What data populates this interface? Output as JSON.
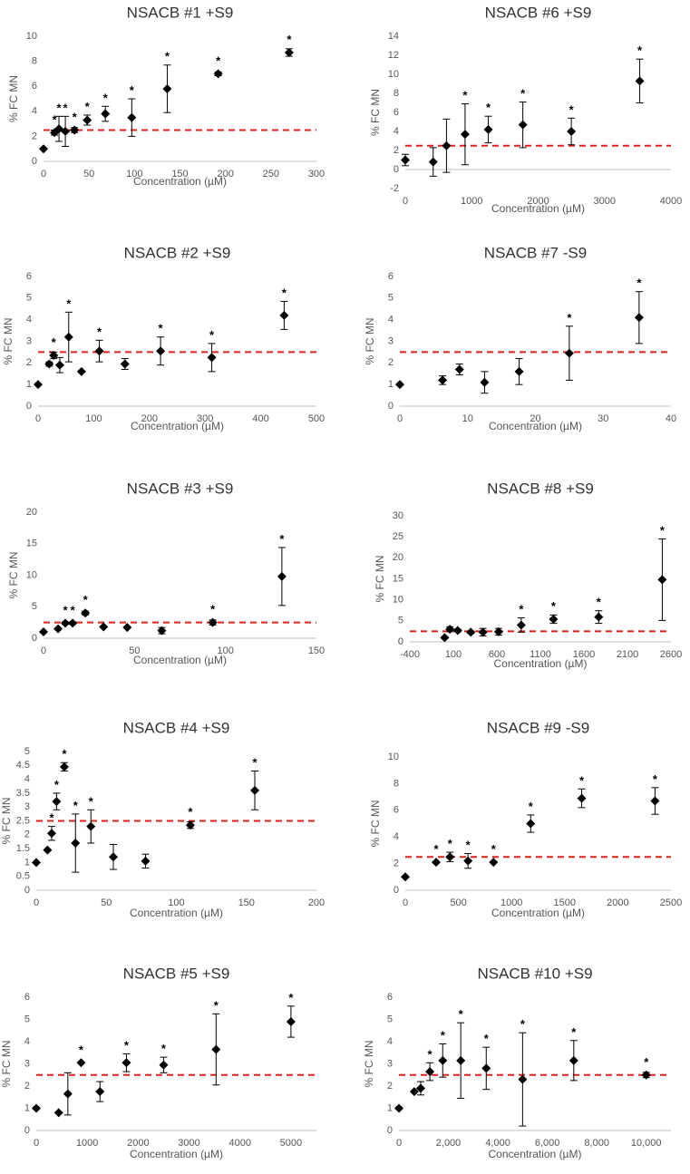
{
  "chart_data": [
    {
      "type": "scatter",
      "title": "NSACB #1 +S9",
      "xlabel": "Concentration (µM)",
      "ylabel": "% FC MN",
      "xlim": [
        0,
        300
      ],
      "ylim": [
        0,
        10
      ],
      "xticks": [
        0,
        50,
        100,
        150,
        200,
        250,
        300
      ],
      "yticks": [
        0,
        2,
        4,
        6,
        8,
        10
      ],
      "xtick_labels": [
        "0",
        "50",
        "100",
        "150",
        "200",
        "250",
        "300"
      ],
      "ytick_labels": [
        "0",
        "2",
        "4",
        "6",
        "8",
        "10"
      ],
      "threshold": 2.5,
      "points": [
        {
          "x": 0,
          "y": 1.0,
          "err": 0,
          "sig": false
        },
        {
          "x": 12,
          "y": 2.3,
          "err": 0.2,
          "sig": true
        },
        {
          "x": 17,
          "y": 2.6,
          "err": 1.0,
          "sig": true
        },
        {
          "x": 24,
          "y": 2.4,
          "err": 1.2,
          "sig": true
        },
        {
          "x": 34,
          "y": 2.5,
          "err": 0.2,
          "sig": true
        },
        {
          "x": 48,
          "y": 3.3,
          "err": 0.4,
          "sig": true
        },
        {
          "x": 68,
          "y": 3.8,
          "err": 0.6,
          "sig": true
        },
        {
          "x": 97,
          "y": 3.5,
          "err": 1.5,
          "sig": true
        },
        {
          "x": 136,
          "y": 5.8,
          "err": 1.9,
          "sig": true
        },
        {
          "x": 192,
          "y": 7.0,
          "err": 0.15,
          "sig": true
        },
        {
          "x": 270,
          "y": 8.7,
          "err": 0.3,
          "sig": true
        }
      ]
    },
    {
      "type": "scatter",
      "title": "NSACB #6 +S9",
      "xlabel": "Concentration (µM)",
      "ylabel": "% FC MN",
      "xlim": [
        0,
        4000
      ],
      "ylim": [
        -2,
        14
      ],
      "xticks": [
        0,
        1000,
        2000,
        3000,
        4000
      ],
      "yticks": [
        -2,
        0,
        2,
        4,
        6,
        8,
        10,
        12,
        14
      ],
      "xtick_labels": [
        "0",
        "1000",
        "2000",
        "3000",
        "4000"
      ],
      "ytick_labels": [
        "-2",
        "0",
        "2",
        "4",
        "6",
        "8",
        "10",
        "12",
        "14"
      ],
      "threshold": 2.5,
      "points": [
        {
          "x": 0,
          "y": 1.0,
          "err": 0.6,
          "sig": false
        },
        {
          "x": 420,
          "y": 0.8,
          "err": 1.5,
          "sig": false
        },
        {
          "x": 620,
          "y": 2.5,
          "err": 2.8,
          "sig": false
        },
        {
          "x": 900,
          "y": 3.7,
          "err": 3.2,
          "sig": true
        },
        {
          "x": 1250,
          "y": 4.2,
          "err": 1.4,
          "sig": true
        },
        {
          "x": 1770,
          "y": 4.7,
          "err": 2.4,
          "sig": true
        },
        {
          "x": 2500,
          "y": 4.0,
          "err": 1.4,
          "sig": true
        },
        {
          "x": 3530,
          "y": 9.3,
          "err": 2.3,
          "sig": true
        }
      ]
    },
    {
      "type": "scatter",
      "title": "NSACB #2 +S9",
      "xlabel": "Concentration (µM)",
      "ylabel": "% FC MN",
      "xlim": [
        0,
        500
      ],
      "ylim": [
        0,
        6
      ],
      "xticks": [
        0,
        100,
        200,
        300,
        400,
        500
      ],
      "yticks": [
        0,
        1,
        2,
        3,
        4,
        5,
        6
      ],
      "xtick_labels": [
        "0",
        "100",
        "200",
        "300",
        "400",
        "500"
      ],
      "ytick_labels": [
        "0",
        "1",
        "2",
        "3",
        "4",
        "5",
        "6"
      ],
      "threshold": 2.5,
      "points": [
        {
          "x": 0,
          "y": 1.0,
          "err": 0,
          "sig": false
        },
        {
          "x": 20,
          "y": 1.95,
          "err": 0.1,
          "sig": false
        },
        {
          "x": 28,
          "y": 2.35,
          "err": 0.15,
          "sig": true
        },
        {
          "x": 39,
          "y": 1.9,
          "err": 0.35,
          "sig": false
        },
        {
          "x": 55,
          "y": 3.2,
          "err": 1.15,
          "sig": true
        },
        {
          "x": 78,
          "y": 1.6,
          "err": 0,
          "sig": false
        },
        {
          "x": 110,
          "y": 2.55,
          "err": 0.5,
          "sig": true
        },
        {
          "x": 156,
          "y": 1.95,
          "err": 0.25,
          "sig": false
        },
        {
          "x": 220,
          "y": 2.55,
          "err": 0.65,
          "sig": true
        },
        {
          "x": 312,
          "y": 2.25,
          "err": 0.65,
          "sig": true
        },
        {
          "x": 442,
          "y": 4.2,
          "err": 0.65,
          "sig": true
        }
      ]
    },
    {
      "type": "scatter",
      "title": "NSACB #7 -S9",
      "xlabel": "Concentration (µM)",
      "ylabel": "% FC MN",
      "xlim": [
        0,
        40
      ],
      "ylim": [
        0,
        6
      ],
      "xticks": [
        0,
        10,
        20,
        30,
        40
      ],
      "yticks": [
        0,
        1,
        2,
        3,
        4,
        5,
        6
      ],
      "xtick_labels": [
        "0",
        "10",
        "20",
        "30",
        "40"
      ],
      "ytick_labels": [
        "0",
        "1",
        "2",
        "3",
        "4",
        "5",
        "6"
      ],
      "threshold": 2.5,
      "points": [
        {
          "x": 0,
          "y": 1.0,
          "err": 0,
          "sig": false
        },
        {
          "x": 6.3,
          "y": 1.2,
          "err": 0.2,
          "sig": false
        },
        {
          "x": 8.8,
          "y": 1.7,
          "err": 0.25,
          "sig": false
        },
        {
          "x": 12.5,
          "y": 1.1,
          "err": 0.5,
          "sig": false
        },
        {
          "x": 17.6,
          "y": 1.6,
          "err": 0.6,
          "sig": false
        },
        {
          "x": 25,
          "y": 2.45,
          "err": 1.25,
          "sig": true
        },
        {
          "x": 35.3,
          "y": 4.1,
          "err": 1.2,
          "sig": true
        }
      ]
    },
    {
      "type": "scatter",
      "title": "NSACB #3 +S9",
      "xlabel": "Concentration (µM)",
      "ylabel": "% FC MN",
      "xlim": [
        0,
        150
      ],
      "ylim": [
        0,
        20
      ],
      "xticks": [
        0,
        50,
        100,
        150
      ],
      "yticks": [
        0,
        5,
        10,
        15,
        20
      ],
      "xtick_labels": [
        "0",
        "50",
        "100",
        "150"
      ],
      "ytick_labels": [
        "0",
        "5",
        "10",
        "15",
        "20"
      ],
      "threshold": 2.5,
      "points": [
        {
          "x": 0,
          "y": 1.0,
          "err": 0,
          "sig": false
        },
        {
          "x": 8,
          "y": 1.5,
          "err": 0,
          "sig": false
        },
        {
          "x": 12,
          "y": 2.4,
          "err": 0.2,
          "sig": true
        },
        {
          "x": 16,
          "y": 2.4,
          "err": 0.2,
          "sig": true
        },
        {
          "x": 23,
          "y": 4.0,
          "err": 0.3,
          "sig": true
        },
        {
          "x": 33,
          "y": 1.8,
          "err": 0,
          "sig": false
        },
        {
          "x": 46,
          "y": 1.7,
          "err": 0,
          "sig": false
        },
        {
          "x": 65,
          "y": 1.2,
          "err": 0.5,
          "sig": false
        },
        {
          "x": 93,
          "y": 2.5,
          "err": 0.4,
          "sig": true
        },
        {
          "x": 131,
          "y": 9.8,
          "err": 4.6,
          "sig": true
        }
      ]
    },
    {
      "type": "scatter",
      "title": "NSACB #8 +S9",
      "xlabel": "Concentration (µM)",
      "ylabel": "% FC MN",
      "xlim": [
        -400,
        2600
      ],
      "ylim": [
        0,
        30
      ],
      "xticks": [
        -400,
        100,
        600,
        1100,
        1600,
        2100,
        2600
      ],
      "yticks": [
        0,
        5,
        10,
        15,
        20,
        25,
        30
      ],
      "xtick_labels": [
        "-400",
        "100",
        "600",
        "1100",
        "1600",
        "2100",
        "2600"
      ],
      "ytick_labels": [
        "0",
        "5",
        "10",
        "15",
        "20",
        "25",
        "30"
      ],
      "threshold": 2.5,
      "points": [
        {
          "x": 0,
          "y": 1.0,
          "err": 0,
          "sig": false
        },
        {
          "x": 60,
          "y": 3.0,
          "err": 0.6,
          "sig": false
        },
        {
          "x": 150,
          "y": 2.7,
          "err": 0.3,
          "sig": false
        },
        {
          "x": 300,
          "y": 2.3,
          "err": 0.3,
          "sig": false
        },
        {
          "x": 440,
          "y": 2.3,
          "err": 0.9,
          "sig": false
        },
        {
          "x": 620,
          "y": 2.4,
          "err": 0.8,
          "sig": false
        },
        {
          "x": 880,
          "y": 4.0,
          "err": 1.7,
          "sig": true
        },
        {
          "x": 1250,
          "y": 5.4,
          "err": 1.0,
          "sig": true
        },
        {
          "x": 1770,
          "y": 5.9,
          "err": 1.5,
          "sig": true
        },
        {
          "x": 2500,
          "y": 14.8,
          "err": 9.7,
          "sig": true
        }
      ]
    },
    {
      "type": "scatter",
      "title": "NSACB #4 +S9",
      "xlabel": "Concentration (µM)",
      "ylabel": "% FC MN",
      "xlim": [
        0,
        200
      ],
      "ylim": [
        0,
        5
      ],
      "xticks": [
        0,
        50,
        100,
        150,
        200
      ],
      "yticks": [
        0,
        0.5,
        1,
        1.5,
        2,
        2.5,
        3,
        3.5,
        4,
        4.5,
        5
      ],
      "xtick_labels": [
        "0",
        "50",
        "100",
        "150",
        "200"
      ],
      "ytick_labels": [
        "0",
        "0.5",
        "1",
        "1.5",
        "2",
        "2.5",
        "3",
        "3.5",
        "4",
        "4.5",
        "5"
      ],
      "threshold": 2.5,
      "points": [
        {
          "x": 0,
          "y": 1.0,
          "err": 0,
          "sig": false
        },
        {
          "x": 8,
          "y": 1.45,
          "err": 0,
          "sig": false
        },
        {
          "x": 11,
          "y": 2.05,
          "err": 0.25,
          "sig": true
        },
        {
          "x": 14.5,
          "y": 3.2,
          "err": 0.3,
          "sig": true
        },
        {
          "x": 20,
          "y": 4.45,
          "err": 0.15,
          "sig": true
        },
        {
          "x": 28,
          "y": 1.7,
          "err": 1.05,
          "sig": true
        },
        {
          "x": 39,
          "y": 2.3,
          "err": 0.6,
          "sig": true
        },
        {
          "x": 55,
          "y": 1.2,
          "err": 0.45,
          "sig": false
        },
        {
          "x": 78,
          "y": 1.05,
          "err": 0.25,
          "sig": false
        },
        {
          "x": 110,
          "y": 2.35,
          "err": 0.12,
          "sig": true
        },
        {
          "x": 156,
          "y": 3.6,
          "err": 0.7,
          "sig": true
        }
      ]
    },
    {
      "type": "scatter",
      "title": "NSACB #9 -S9",
      "xlabel": "Concentration (µM)",
      "ylabel": "% FC MN",
      "xlim": [
        0,
        2500
      ],
      "ylim": [
        0,
        10
      ],
      "xticks": [
        0,
        500,
        1000,
        1500,
        2000,
        2500
      ],
      "yticks": [
        0,
        2,
        4,
        6,
        8,
        10
      ],
      "xtick_labels": [
        "0",
        "500",
        "1000",
        "1500",
        "2000",
        "2500"
      ],
      "ytick_labels": [
        "0",
        "2",
        "4",
        "6",
        "8",
        "10"
      ],
      "threshold": 2.5,
      "points": [
        {
          "x": 0,
          "y": 1.0,
          "err": 0,
          "sig": false
        },
        {
          "x": 290,
          "y": 2.1,
          "err": 0,
          "sig": true
        },
        {
          "x": 420,
          "y": 2.5,
          "err": 0.35,
          "sig": true
        },
        {
          "x": 590,
          "y": 2.2,
          "err": 0.55,
          "sig": true
        },
        {
          "x": 830,
          "y": 2.1,
          "err": 0,
          "sig": true
        },
        {
          "x": 1180,
          "y": 5.0,
          "err": 0.65,
          "sig": true
        },
        {
          "x": 1660,
          "y": 6.9,
          "err": 0.7,
          "sig": true
        },
        {
          "x": 2350,
          "y": 6.7,
          "err": 1.0,
          "sig": true
        }
      ]
    },
    {
      "type": "scatter",
      "title": "NSACB #5 +S9",
      "xlabel": "Concentration (µM)",
      "ylabel": "% FC MN",
      "xlim": [
        0,
        5500
      ],
      "ylim": [
        0,
        6
      ],
      "xticks": [
        0,
        1000,
        2000,
        3000,
        4000,
        5000
      ],
      "yticks": [
        0,
        1,
        2,
        3,
        4,
        5,
        6
      ],
      "xtick_labels": [
        "0",
        "1000",
        "2000",
        "3000",
        "4000",
        "5000"
      ],
      "ytick_labels": [
        "0",
        "1",
        "2",
        "3",
        "4",
        "5",
        "6"
      ],
      "threshold": 2.5,
      "points": [
        {
          "x": 0,
          "y": 1.0,
          "err": 0,
          "sig": false
        },
        {
          "x": 440,
          "y": 0.8,
          "err": 0,
          "sig": false
        },
        {
          "x": 620,
          "y": 1.65,
          "err": 0.95,
          "sig": false
        },
        {
          "x": 880,
          "y": 3.05,
          "err": 0,
          "sig": true
        },
        {
          "x": 1250,
          "y": 1.75,
          "err": 0.45,
          "sig": false
        },
        {
          "x": 1770,
          "y": 3.05,
          "err": 0.4,
          "sig": true
        },
        {
          "x": 2500,
          "y": 2.95,
          "err": 0.35,
          "sig": true
        },
        {
          "x": 3530,
          "y": 3.65,
          "err": 1.6,
          "sig": true
        },
        {
          "x": 5000,
          "y": 4.9,
          "err": 0.7,
          "sig": true
        }
      ]
    },
    {
      "type": "scatter",
      "title": "NSACB #10 +S9",
      "xlabel": "Concentration (µM)",
      "ylabel": "% FC MN",
      "xlim": [
        0,
        11000
      ],
      "ylim": [
        0,
        6
      ],
      "xticks": [
        0,
        2000,
        4000,
        6000,
        8000,
        10000
      ],
      "yticks": [
        0,
        1,
        2,
        3,
        4,
        5,
        6
      ],
      "xtick_labels": [
        "0",
        "2,000",
        "4,000",
        "6,000",
        "8,000",
        "10,000"
      ],
      "ytick_labels": [
        "0",
        "1",
        "2",
        "3",
        "4",
        "5",
        "6"
      ],
      "threshold": 2.5,
      "points": [
        {
          "x": 0,
          "y": 1.0,
          "err": 0,
          "sig": false
        },
        {
          "x": 620,
          "y": 1.75,
          "err": 0,
          "sig": false
        },
        {
          "x": 880,
          "y": 1.9,
          "err": 0.3,
          "sig": false
        },
        {
          "x": 1250,
          "y": 2.65,
          "err": 0.4,
          "sig": true
        },
        {
          "x": 1770,
          "y": 3.15,
          "err": 0.75,
          "sig": true
        },
        {
          "x": 2500,
          "y": 3.15,
          "err": 1.7,
          "sig": true
        },
        {
          "x": 3530,
          "y": 2.8,
          "err": 0.95,
          "sig": true
        },
        {
          "x": 5000,
          "y": 2.3,
          "err": 2.1,
          "sig": true
        },
        {
          "x": 7070,
          "y": 3.15,
          "err": 0.9,
          "sig": true
        },
        {
          "x": 10000,
          "y": 2.5,
          "err": 0.12,
          "sig": true
        }
      ]
    }
  ],
  "significance_marker": "*"
}
